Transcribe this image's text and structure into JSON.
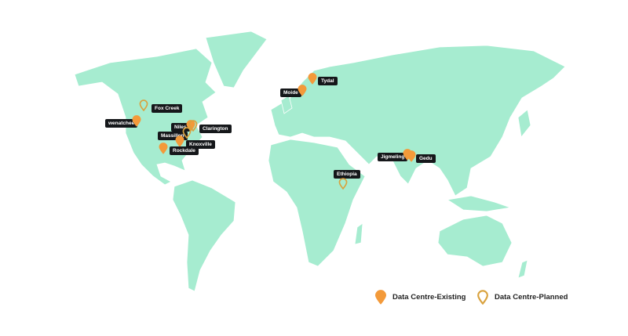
{
  "colors": {
    "land": "#a6ecd0",
    "existing": "#f39a3a",
    "planned": "#d9a23e",
    "label_bg": "#15171a"
  },
  "sites": [
    {
      "name": "Fox Creek",
      "status": "planned"
    },
    {
      "name": "wenatchee",
      "status": "existing"
    },
    {
      "name": "Niles",
      "status": "existing"
    },
    {
      "name": "Clarington",
      "status": "planned"
    },
    {
      "name": "Massillon",
      "status": "planned"
    },
    {
      "name": "Knoxville",
      "status": "existing"
    },
    {
      "name": "Rockdale",
      "status": "existing"
    },
    {
      "name": "Moide",
      "status": "existing"
    },
    {
      "name": "Tydal",
      "status": "existing"
    },
    {
      "name": "Jigmeling",
      "status": "existing"
    },
    {
      "name": "Gedu",
      "status": "existing"
    },
    {
      "name": "Ethiopia",
      "status": "planned"
    }
  ],
  "legend": {
    "existing": "Data Centre-Existing",
    "planned": "Data Centre-Planned"
  }
}
